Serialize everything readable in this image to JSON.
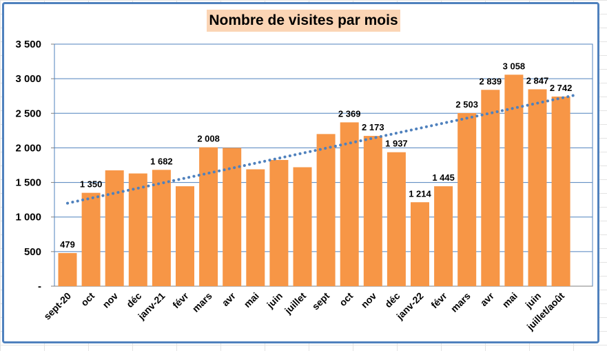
{
  "chart_data": {
    "type": "bar",
    "title": "Nombre de visites par mois",
    "categories": [
      "sept-20",
      "oct",
      "nov",
      "déc",
      "janv-21",
      "févr",
      "mars",
      "avr",
      "mai",
      "juin",
      "juillet",
      "sept",
      "oct",
      "nov",
      "déc",
      "janv-22",
      "févr",
      "mars",
      "avr",
      "mai",
      "juin",
      "juillet/août"
    ],
    "values": [
      479,
      1350,
      1675,
      1630,
      1682,
      1445,
      2008,
      2000,
      1690,
      1825,
      1720,
      2200,
      2369,
      2173,
      1937,
      1214,
      1445,
      2503,
      2839,
      3058,
      2847,
      2742
    ],
    "data_labels": [
      {
        "index": 0,
        "text": "479"
      },
      {
        "index": 1,
        "text": "1 350"
      },
      {
        "index": 4,
        "text": "1 682"
      },
      {
        "index": 6,
        "text": "2 008"
      },
      {
        "index": 12,
        "text": "2 369"
      },
      {
        "index": 13,
        "text": "2 173"
      },
      {
        "index": 14,
        "text": "1 937"
      },
      {
        "index": 15,
        "text": "1 214"
      },
      {
        "index": 16,
        "text": "1 445"
      },
      {
        "index": 17,
        "text": "2 503"
      },
      {
        "index": 18,
        "text": "2 839"
      },
      {
        "index": 19,
        "text": "3 058"
      },
      {
        "index": 20,
        "text": "2 847"
      },
      {
        "index": 21,
        "text": "2 742"
      }
    ],
    "yticks": [
      {
        "value": 0,
        "label": "-"
      },
      {
        "value": 500,
        "label": "500"
      },
      {
        "value": 1000,
        "label": "1 000"
      },
      {
        "value": 1500,
        "label": "1 500"
      },
      {
        "value": 2000,
        "label": "2 000"
      },
      {
        "value": 2500,
        "label": "2 500"
      },
      {
        "value": 3000,
        "label": "3 000"
      },
      {
        "value": 3500,
        "label": "3 500"
      }
    ],
    "ylim": [
      0,
      3500
    ],
    "xlabel": "",
    "ylabel": "",
    "grid": true,
    "legend": "none",
    "trendline": {
      "type": "linear",
      "style": "dotted",
      "start": 1200,
      "end": 2770
    },
    "colors": {
      "bar": "#f79646",
      "trend": "#4f81bd",
      "grid": "#4f81bd",
      "title_bg": "#fbd5b5",
      "frame": "#4f81bd"
    }
  }
}
